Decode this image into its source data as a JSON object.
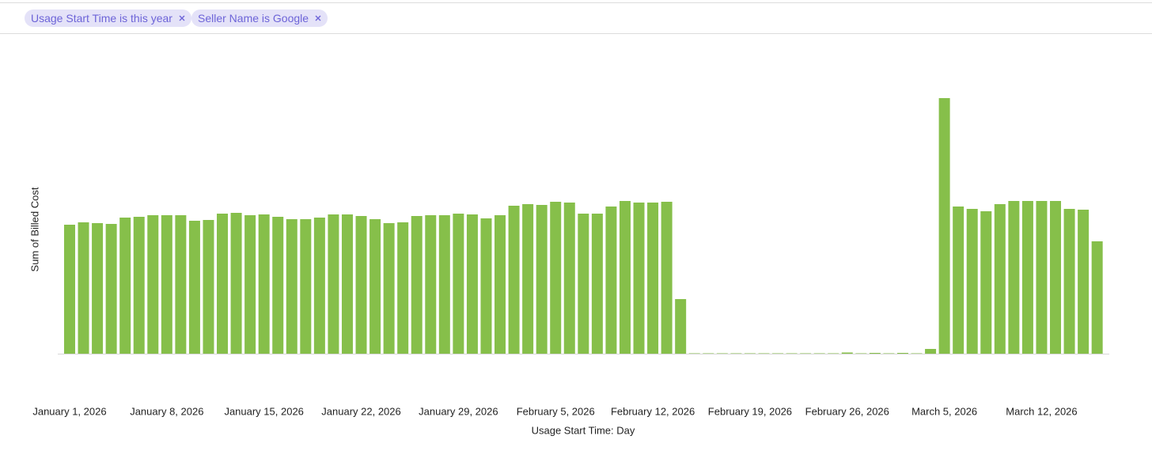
{
  "filters": [
    "Usage Start Time is this year",
    "Seller Name is Google"
  ],
  "chart_data": {
    "type": "bar",
    "ylabel": "Sum of Billed Cost",
    "xlabel": "Usage Start Time: Day",
    "color": "#86bf4a",
    "categories": [
      "January 1, 2026",
      null,
      null,
      null,
      null,
      null,
      null,
      "January 8, 2026",
      null,
      null,
      null,
      null,
      null,
      null,
      "January 15, 2026",
      null,
      null,
      null,
      null,
      null,
      null,
      "January 22, 2026",
      null,
      null,
      null,
      null,
      null,
      null,
      "January 29, 2026",
      null,
      null,
      null,
      null,
      null,
      null,
      "February 5, 2026",
      null,
      null,
      null,
      null,
      null,
      null,
      "February 12, 2026",
      null,
      null,
      null,
      null,
      null,
      null,
      "February 19, 2026",
      null,
      null,
      null,
      null,
      null,
      null,
      "February 26, 2026",
      null,
      null,
      null,
      null,
      null,
      null,
      "March 5, 2026",
      null,
      null,
      null,
      null,
      null,
      null,
      "March 12, 2026",
      null,
      null,
      null,
      null
    ],
    "values": [
      163,
      166,
      165,
      164,
      172,
      173,
      175,
      175,
      175,
      168,
      169,
      177,
      178,
      175,
      176,
      173,
      170,
      170,
      172,
      176,
      176,
      174,
      170,
      165,
      166,
      174,
      175,
      175,
      177,
      176,
      171,
      175,
      187,
      189,
      188,
      192,
      191,
      177,
      177,
      186,
      193,
      191,
      191,
      192,
      69,
      0.5,
      0.5,
      0.5,
      0.5,
      0.5,
      0.5,
      0.5,
      0.5,
      0.5,
      0.5,
      0.5,
      1.5,
      0.5,
      1,
      0.5,
      1,
      0.5,
      6,
      323,
      186,
      183,
      180,
      189,
      193,
      193,
      193,
      193,
      183,
      182,
      142
    ],
    "ylim": [
      0,
      340
    ]
  }
}
